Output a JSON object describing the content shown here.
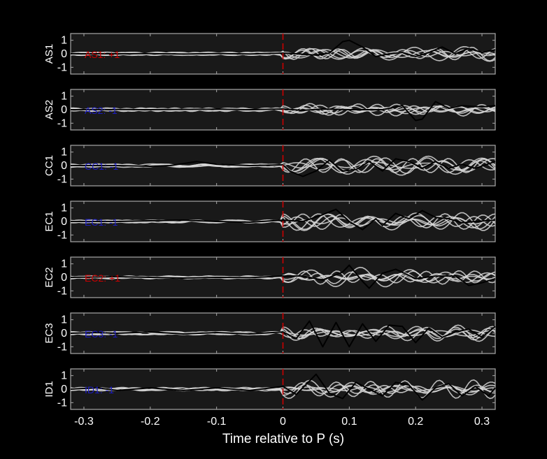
{
  "chart_data": {
    "type": "line",
    "xlabel": "Time relative to P (s)",
    "xlim": [
      -0.32,
      0.32
    ],
    "xticks": [
      -0.3,
      -0.2,
      -0.1,
      0,
      0.1,
      0.2,
      0.3
    ],
    "xtick_labels": [
      "-0.3",
      "-0.2",
      "-0.1",
      "0",
      "0.1",
      "0.2",
      "0.3"
    ],
    "ylim": [
      -1.5,
      1.5
    ],
    "yticks": [
      1,
      0,
      -1
    ],
    "ytick_labels": [
      "1",
      "0",
      "-1"
    ],
    "marker_time": 0,
    "colors": {
      "background": "#000000",
      "panel": "#191919",
      "axes": "#a8a8a8",
      "trace_stack": "#d8d8d8",
      "trace_main": "#000000",
      "marker": "#cc0000",
      "positive_label": "#cc0000",
      "negative_label": "#1c1cc0"
    },
    "panels": [
      {
        "station": "AS1",
        "polarity_label": "AS1: +1",
        "polarity": 1,
        "main_trace": [
          [
            -0.32,
            0
          ],
          [
            -0.25,
            0
          ],
          [
            -0.2,
            0.01
          ],
          [
            -0.15,
            -0.02
          ],
          [
            -0.1,
            0.02
          ],
          [
            -0.05,
            -0.01
          ],
          [
            0,
            0.05
          ],
          [
            0.02,
            0.0
          ],
          [
            0.05,
            -0.1
          ],
          [
            0.07,
            0.05
          ],
          [
            0.09,
            0.9
          ],
          [
            0.1,
            1.0
          ],
          [
            0.12,
            0.5
          ],
          [
            0.14,
            -0.2
          ],
          [
            0.16,
            0
          ],
          [
            0.18,
            0.1
          ],
          [
            0.2,
            -0.2
          ],
          [
            0.22,
            0.1
          ],
          [
            0.24,
            0.5
          ],
          [
            0.26,
            0.0
          ],
          [
            0.28,
            0.4
          ],
          [
            0.3,
            0.1
          ],
          [
            0.32,
            0.3
          ]
        ]
      },
      {
        "station": "AS2",
        "polarity_label": "AS2: -1",
        "polarity": -1,
        "main_trace": [
          [
            -0.32,
            0
          ],
          [
            -0.25,
            0.01
          ],
          [
            -0.2,
            0
          ],
          [
            -0.15,
            0.02
          ],
          [
            -0.1,
            0.04
          ],
          [
            -0.05,
            0
          ],
          [
            0,
            0.05
          ],
          [
            0.03,
            -0.05
          ],
          [
            0.06,
            0.05
          ],
          [
            0.1,
            0
          ],
          [
            0.15,
            0.0
          ],
          [
            0.18,
            0.3
          ],
          [
            0.2,
            -0.8
          ],
          [
            0.21,
            -0.7
          ],
          [
            0.23,
            0.6
          ],
          [
            0.25,
            0.1
          ],
          [
            0.27,
            0.3
          ],
          [
            0.3,
            0.2
          ],
          [
            0.32,
            0.3
          ]
        ]
      },
      {
        "station": "CC1",
        "polarity_label": "CC1: -1",
        "polarity": -1,
        "main_trace": [
          [
            -0.32,
            0
          ],
          [
            -0.25,
            0
          ],
          [
            -0.2,
            -0.05
          ],
          [
            -0.17,
            0.0
          ],
          [
            -0.13,
            0.3
          ],
          [
            -0.1,
            0.1
          ],
          [
            -0.05,
            0
          ],
          [
            0,
            0.05
          ],
          [
            0.01,
            -0.4
          ],
          [
            0.03,
            -0.8
          ],
          [
            0.05,
            -0.4
          ],
          [
            0.07,
            0.4
          ],
          [
            0.09,
            -0.4
          ],
          [
            0.11,
            -0.3
          ],
          [
            0.13,
            0.3
          ],
          [
            0.15,
            -0.4
          ],
          [
            0.17,
            0.5
          ],
          [
            0.19,
            0.3
          ],
          [
            0.21,
            -0.2
          ],
          [
            0.23,
            0.3
          ],
          [
            0.25,
            -0.2
          ],
          [
            0.27,
            0.1
          ],
          [
            0.29,
            -0.2
          ],
          [
            0.32,
            0.3
          ]
        ]
      },
      {
        "station": "EC1",
        "polarity_label": "EC1: -1",
        "polarity": -1,
        "main_trace": [
          [
            -0.32,
            0
          ],
          [
            -0.25,
            0
          ],
          [
            -0.2,
            0.05
          ],
          [
            -0.15,
            0.1
          ],
          [
            -0.1,
            0
          ],
          [
            -0.05,
            -0.05
          ],
          [
            0,
            0.1
          ],
          [
            0.03,
            0.0
          ],
          [
            0.06,
            0.5
          ],
          [
            0.08,
            0.9
          ],
          [
            0.1,
            0.0
          ],
          [
            0.12,
            -0.6
          ],
          [
            0.14,
            0.2
          ],
          [
            0.15,
            -0.3
          ],
          [
            0.17,
            0.6
          ],
          [
            0.19,
            0.2
          ],
          [
            0.21,
            0.8
          ],
          [
            0.23,
            0.3
          ],
          [
            0.25,
            0.2
          ],
          [
            0.27,
            -0.1
          ],
          [
            0.29,
            0
          ],
          [
            0.32,
            0.1
          ]
        ]
      },
      {
        "station": "EC2",
        "polarity_label": "EC2: +1",
        "polarity": 1,
        "main_trace": [
          [
            -0.32,
            0
          ],
          [
            -0.25,
            0.05
          ],
          [
            -0.2,
            0.0
          ],
          [
            -0.15,
            -0.05
          ],
          [
            -0.1,
            0
          ],
          [
            -0.05,
            -0.02
          ],
          [
            0,
            0.1
          ],
          [
            0.03,
            0.1
          ],
          [
            0.06,
            -0.2
          ],
          [
            0.09,
            0.4
          ],
          [
            0.1,
            0.9
          ],
          [
            0.12,
            -0.3
          ],
          [
            0.13,
            -0.8
          ],
          [
            0.15,
            0.3
          ],
          [
            0.17,
            0.6
          ],
          [
            0.2,
            -0.1
          ],
          [
            0.23,
            0.1
          ],
          [
            0.26,
            0.1
          ],
          [
            0.28,
            -0.6
          ],
          [
            0.3,
            -0.4
          ],
          [
            0.32,
            -0.1
          ]
        ]
      },
      {
        "station": "EC3",
        "polarity_label": "EC3: -1",
        "polarity": -1,
        "main_trace": [
          [
            -0.32,
            0
          ],
          [
            -0.28,
            0.05
          ],
          [
            -0.25,
            0.0
          ],
          [
            -0.2,
            0.1
          ],
          [
            -0.15,
            -0.05
          ],
          [
            -0.1,
            0.05
          ],
          [
            -0.05,
            -0.05
          ],
          [
            0,
            0.1
          ],
          [
            0.02,
            -0.4
          ],
          [
            0.04,
            0.9
          ],
          [
            0.06,
            -1.0
          ],
          [
            0.08,
            0.8
          ],
          [
            0.1,
            -1.0
          ],
          [
            0.12,
            0.7
          ],
          [
            0.14,
            -0.6
          ],
          [
            0.16,
            0.6
          ],
          [
            0.18,
            0.5
          ],
          [
            0.2,
            -0.7
          ],
          [
            0.22,
            0.4
          ],
          [
            0.24,
            -0.3
          ],
          [
            0.26,
            0.1
          ],
          [
            0.28,
            0.3
          ],
          [
            0.3,
            -0.3
          ],
          [
            0.32,
            0.5
          ]
        ]
      },
      {
        "station": "ID1",
        "polarity_label": "ID1: -1",
        "polarity": -1,
        "main_trace": [
          [
            -0.32,
            0
          ],
          [
            -0.28,
            0.1
          ],
          [
            -0.25,
            -0.1
          ],
          [
            -0.2,
            0.1
          ],
          [
            -0.15,
            -0.1
          ],
          [
            -0.1,
            0.1
          ],
          [
            -0.05,
            -0.1
          ],
          [
            0,
            0.2
          ],
          [
            0.02,
            -0.4
          ],
          [
            0.05,
            1.1
          ],
          [
            0.07,
            -0.3
          ],
          [
            0.09,
            -0.7
          ],
          [
            0.11,
            0.5
          ],
          [
            0.13,
            0.0
          ],
          [
            0.15,
            -0.5
          ],
          [
            0.17,
            0.5
          ],
          [
            0.19,
            0.3
          ],
          [
            0.21,
            -0.8
          ],
          [
            0.23,
            0.1
          ],
          [
            0.25,
            0.4
          ],
          [
            0.27,
            -0.5
          ],
          [
            0.29,
            0.2
          ],
          [
            0.31,
            -0.5
          ],
          [
            0.32,
            0.1
          ]
        ]
      }
    ]
  }
}
